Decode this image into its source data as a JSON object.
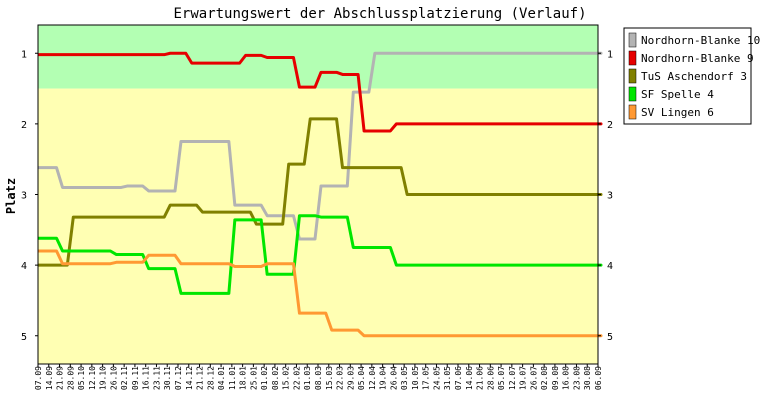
{
  "chart_data": {
    "type": "line",
    "title": "Erwartungswert der Abschlussplatzierung (Verlauf)",
    "xlabel": "",
    "ylabel": "Platz",
    "ylim": [
      5.4,
      0.6
    ],
    "y_ticks": [
      1,
      2,
      3,
      4,
      5
    ],
    "legend_position": "top-right",
    "grid": false,
    "bands": [
      {
        "from": 0.6,
        "to": 1.5,
        "color": "#b3ffb3"
      },
      {
        "from": 1.5,
        "to": 5.4,
        "color": "#ffffb3"
      }
    ],
    "categories": [
      "07.09",
      "14.09",
      "21.09",
      "28.09",
      "05.10",
      "12.10",
      "19.10",
      "26.10",
      "02.11",
      "09.11",
      "16.11",
      "23.11",
      "30.11",
      "07.12",
      "14.12",
      "21.12",
      "28.12",
      "04.01",
      "11.01",
      "18.01",
      "25.01",
      "01.02",
      "08.02",
      "15.02",
      "22.02",
      "01.03",
      "08.03",
      "15.03",
      "22.03",
      "29.03",
      "05.04",
      "12.04",
      "19.04",
      "26.04",
      "03.05",
      "10.05",
      "17.05",
      "24.05",
      "31.05",
      "07.06",
      "14.06",
      "21.06",
      "28.06",
      "05.07",
      "12.07",
      "19.07",
      "26.07",
      "02.08",
      "09.08",
      "16.08",
      "23.08",
      "30.08",
      "06.09"
    ],
    "series": [
      {
        "name": "Nordhorn-Blanke 10",
        "color": "#b3b3b3",
        "values": [
          2.62,
          2.62,
          2.9,
          2.9,
          2.9,
          2.9,
          2.9,
          2.9,
          2.88,
          2.88,
          2.95,
          2.95,
          2.95,
          2.25,
          2.25,
          2.25,
          2.25,
          2.25,
          3.15,
          3.15,
          3.15,
          3.3,
          3.3,
          3.3,
          3.63,
          3.63,
          2.88,
          2.88,
          2.88,
          1.55,
          1.55,
          1,
          1,
          1,
          1,
          1,
          1,
          1,
          1,
          1,
          1,
          1,
          1,
          1,
          1,
          1,
          1,
          1,
          1,
          1,
          1,
          1,
          1
        ]
      },
      {
        "name": "Nordhorn-Blanke 9",
        "color": "#e60000",
        "values": [
          1.02,
          1.02,
          1.02,
          1.02,
          1.02,
          1.02,
          1.02,
          1.02,
          1.02,
          1.02,
          1.02,
          1.02,
          1,
          1,
          1.14,
          1.14,
          1.14,
          1.14,
          1.14,
          1.03,
          1.03,
          1.06,
          1.06,
          1.06,
          1.48,
          1.48,
          1.27,
          1.27,
          1.3,
          1.3,
          2.1,
          2.1,
          2.1,
          2,
          2,
          2,
          2,
          2,
          2,
          2,
          2,
          2,
          2,
          2,
          2,
          2,
          2,
          2,
          2,
          2,
          2,
          2,
          2
        ]
      },
      {
        "name": "TuS Aschendorf 3",
        "color": "#808000",
        "values": [
          4,
          4,
          4,
          3.32,
          3.32,
          3.32,
          3.32,
          3.32,
          3.32,
          3.32,
          3.32,
          3.32,
          3.15,
          3.15,
          3.15,
          3.25,
          3.25,
          3.25,
          3.25,
          3.25,
          3.42,
          3.42,
          3.42,
          2.57,
          2.57,
          1.93,
          1.93,
          1.93,
          2.62,
          2.62,
          2.62,
          2.62,
          2.62,
          2.62,
          3,
          3,
          3,
          3,
          3,
          3,
          3,
          3,
          3,
          3,
          3,
          3,
          3,
          3,
          3,
          3,
          3,
          3,
          3
        ]
      },
      {
        "name": "SF Spelle 4",
        "color": "#00e600",
        "values": [
          3.62,
          3.62,
          3.8,
          3.8,
          3.8,
          3.8,
          3.8,
          3.85,
          3.85,
          3.85,
          4.05,
          4.05,
          4.05,
          4.4,
          4.4,
          4.4,
          4.4,
          4.4,
          3.36,
          3.36,
          3.36,
          4.13,
          4.13,
          4.13,
          3.3,
          3.3,
          3.32,
          3.32,
          3.32,
          3.75,
          3.75,
          3.75,
          3.75,
          4,
          4,
          4,
          4,
          4,
          4,
          4,
          4,
          4,
          4,
          4,
          4,
          4,
          4,
          4,
          4,
          4,
          4,
          4,
          4
        ]
      },
      {
        "name": "SV Lingen 6",
        "color": "#ff9933",
        "values": [
          3.8,
          3.8,
          3.98,
          3.98,
          3.98,
          3.98,
          3.98,
          3.96,
          3.96,
          3.96,
          3.86,
          3.86,
          3.86,
          3.98,
          3.98,
          3.98,
          3.98,
          3.98,
          4.02,
          4.02,
          4.02,
          3.98,
          3.98,
          3.98,
          4.68,
          4.68,
          4.68,
          4.92,
          4.92,
          4.92,
          5,
          5,
          5,
          5,
          5,
          5,
          5,
          5,
          5,
          5,
          5,
          5,
          5,
          5,
          5,
          5,
          5,
          5,
          5,
          5,
          5,
          5,
          5
        ]
      }
    ]
  }
}
